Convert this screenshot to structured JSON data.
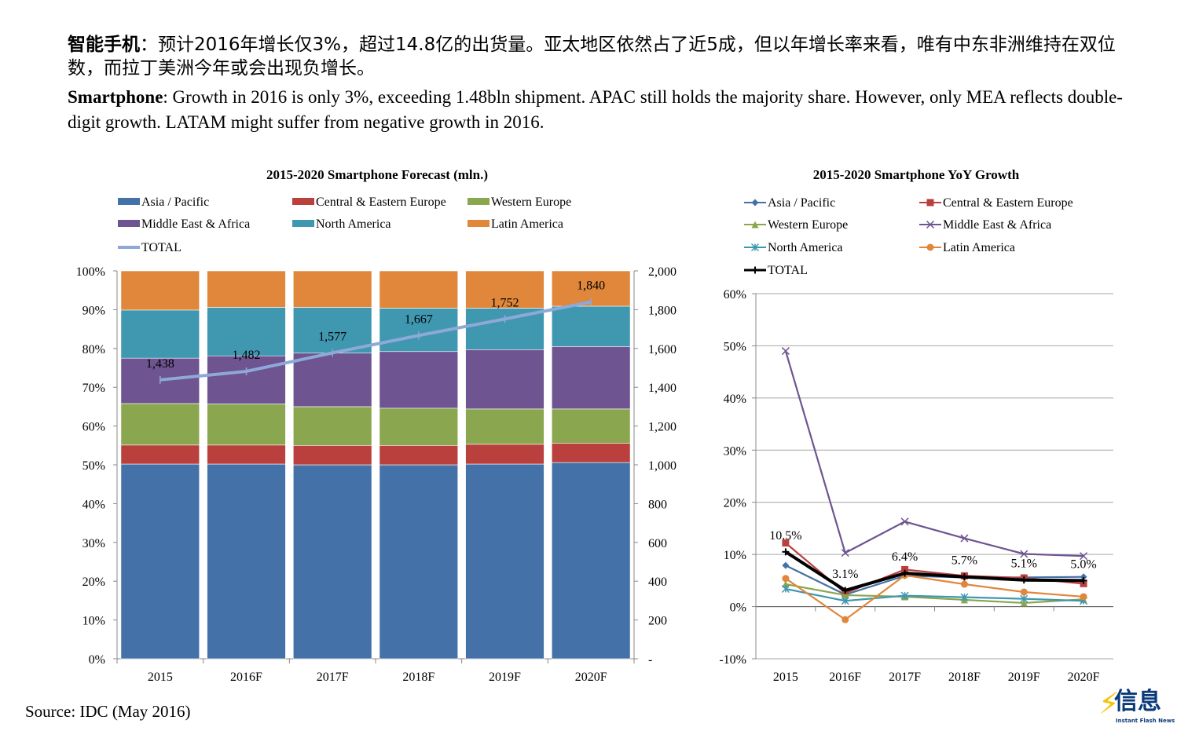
{
  "headline": {
    "cn_bold": "智能手机",
    "cn_text": "：预计2016年增长仅3%，超过14.8亿的出货量。亚太地区依然占了近5成，但以年增长率来看，唯有中东非洲维持在双位数，而拉丁美洲今年或会出现负增长。",
    "en_bold": "Smartphone",
    "en_text": ": Growth in 2016 is only 3%, exceeding 1.48bln shipment. APAC still holds the majority share. However, only MEA reflects double-digit growth. LATAM might suffer from negative growth in 2016."
  },
  "source": "Source: IDC (May 2016)",
  "logo": {
    "word": "信息",
    "sub": "Instant Flash News",
    "icon": "lightning-bolt-icon"
  },
  "colors": {
    "asia": "#4472a8",
    "cee": "#b9403d",
    "we": "#8aa64e",
    "mea": "#6e5490",
    "na": "#3f97b0",
    "la": "#e0873b",
    "total_line": "#8ea9d8",
    "total_growth": "#000000"
  },
  "chart_data": [
    {
      "type": "bar",
      "stacked": true,
      "percent_stacked": true,
      "title": "2015-2020 Smartphone Forecast (mln.)",
      "categories": [
        "2015",
        "2016F",
        "2017F",
        "2018F",
        "2019F",
        "2020F"
      ],
      "series": [
        {
          "name": "Asia / Pacific",
          "values": [
            50.2,
            50.2,
            50.0,
            50.0,
            50.2,
            50.6
          ]
        },
        {
          "name": "Central & Eastern Europe",
          "values": [
            4.9,
            4.9,
            5.0,
            5.0,
            5.1,
            5.0
          ]
        },
        {
          "name": "Western Europe",
          "values": [
            10.7,
            10.6,
            10.0,
            9.6,
            9.1,
            8.8
          ]
        },
        {
          "name": "Middle East & Africa",
          "values": [
            11.7,
            12.4,
            13.8,
            14.6,
            15.3,
            16.1
          ]
        },
        {
          "name": "North America",
          "values": [
            12.4,
            12.5,
            11.8,
            11.2,
            10.7,
            10.4
          ]
        },
        {
          "name": "Latin America",
          "values": [
            10.1,
            9.4,
            9.4,
            9.6,
            9.6,
            9.1
          ]
        }
      ],
      "total_series": {
        "name": "TOTAL",
        "values": [
          1438,
          1482,
          1577,
          1667,
          1752,
          1840
        ],
        "labels": [
          "1,438",
          "1,482",
          "1,577",
          "1,667",
          "1,752",
          "1,840"
        ]
      },
      "yticks_left": [
        "0%",
        "10%",
        "20%",
        "30%",
        "40%",
        "50%",
        "60%",
        "70%",
        "80%",
        "90%",
        "100%"
      ],
      "yticks_right": [
        "-",
        "200",
        "400",
        "600",
        "800",
        "1,000",
        "1,200",
        "1,400",
        "1,600",
        "1,800",
        "2,000"
      ],
      "ylim_left": [
        0,
        100
      ],
      "ylim_right": [
        0,
        2000
      ],
      "legend": "top"
    },
    {
      "type": "line",
      "title": "2015-2020 Smartphone YoY Growth",
      "categories": [
        "2015",
        "2016F",
        "2017F",
        "2018F",
        "2019F",
        "2020F"
      ],
      "series": [
        {
          "name": "Asia / Pacific",
          "values": [
            7.9,
            2.3,
            5.9,
            5.6,
            5.6,
            5.7
          ]
        },
        {
          "name": "Central & Eastern Europe",
          "values": [
            12.2,
            2.6,
            7.1,
            5.9,
            5.5,
            4.4
          ]
        },
        {
          "name": "Western Europe",
          "values": [
            4.3,
            2.2,
            1.9,
            1.3,
            0.7,
            1.4
          ]
        },
        {
          "name": "Middle East & Africa",
          "values": [
            49.0,
            10.3,
            16.3,
            13.1,
            10.1,
            9.7
          ]
        },
        {
          "name": "North America",
          "values": [
            3.4,
            1.1,
            2.1,
            1.8,
            1.5,
            1.1
          ]
        },
        {
          "name": "Latin America",
          "values": [
            5.4,
            -2.5,
            6.0,
            4.3,
            2.8,
            1.9
          ]
        },
        {
          "name": "TOTAL",
          "values": [
            10.5,
            3.1,
            6.4,
            5.7,
            5.1,
            5.0
          ]
        }
      ],
      "total_labels": [
        "10.5%",
        "3.1%",
        "6.4%",
        "5.7%",
        "5.1%",
        "5.0%"
      ],
      "yticks": [
        "-10%",
        "0%",
        "10%",
        "20%",
        "30%",
        "40%",
        "50%",
        "60%"
      ],
      "ylim": [
        -10,
        60
      ],
      "grid": true,
      "legend": "top"
    }
  ]
}
